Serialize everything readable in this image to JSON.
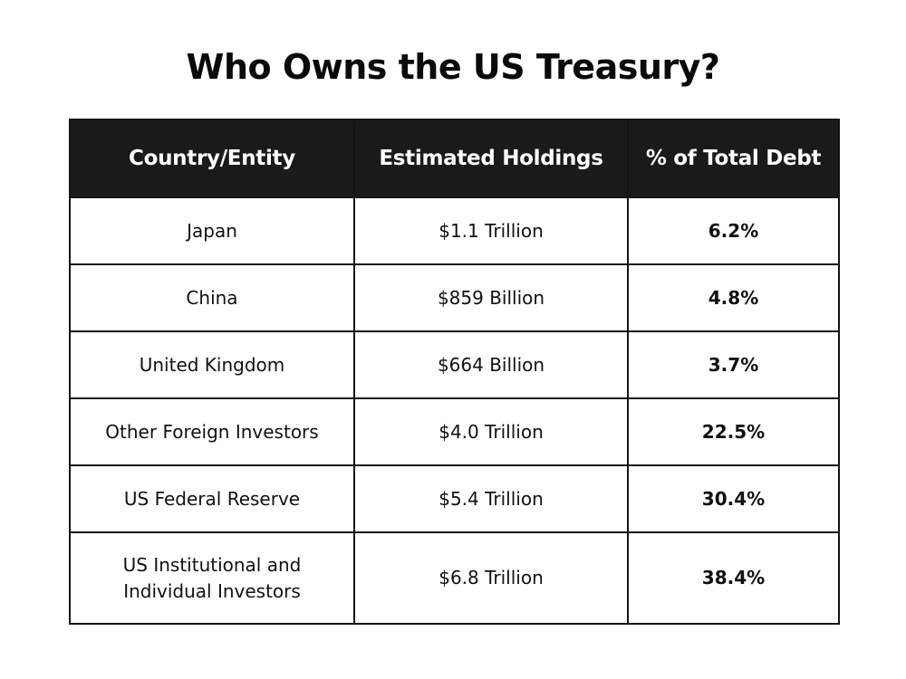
{
  "chart_data": {
    "type": "table",
    "title": "Who Owns the US Treasury?",
    "columns": [
      "Country/Entity",
      "Estimated Holdings",
      "% of Total Debt"
    ],
    "rows": [
      {
        "entity": "Japan",
        "holdings": "$1.1 Trillion",
        "percent": "6.2%"
      },
      {
        "entity": "China",
        "holdings": "$859 Billion",
        "percent": "4.8%"
      },
      {
        "entity": "United Kingdom",
        "holdings": "$664 Billion",
        "percent": "3.7%"
      },
      {
        "entity": "Other Foreign Investors",
        "holdings": "$4.0 Trillion",
        "percent": "22.5%"
      },
      {
        "entity": "US Federal Reserve",
        "holdings": "$5.4 Trillion",
        "percent": "30.4%"
      },
      {
        "entity": "US Institutional and Individual Investors",
        "holdings": "$6.8 Trillion",
        "percent": "38.4%"
      }
    ]
  },
  "colors": {
    "header_background": "#1a1a1a",
    "header_text": "#ffffff",
    "border": "#141414",
    "body_text": "#111111"
  }
}
